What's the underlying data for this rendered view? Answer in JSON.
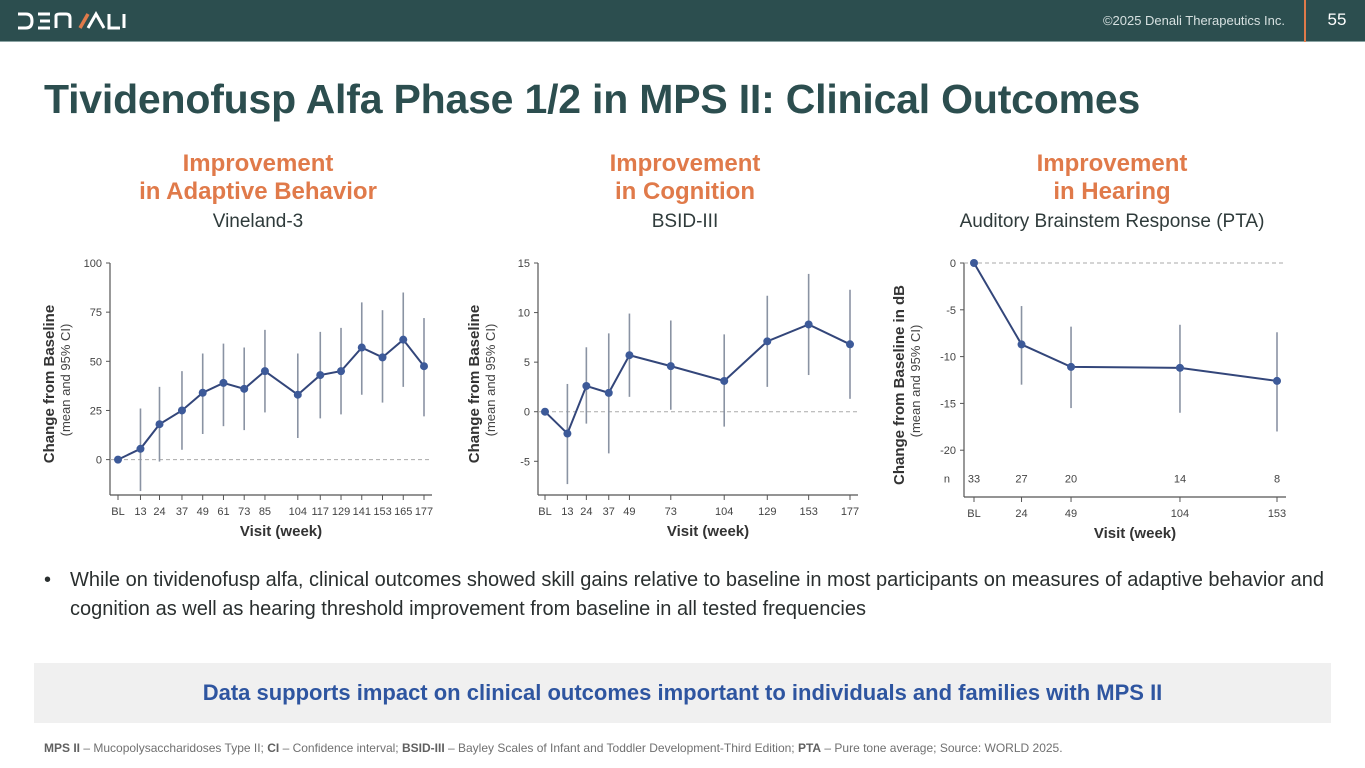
{
  "header": {
    "logo_text": "DENALI",
    "copyright": "©2025 Denali Therapeutics Inc.",
    "page_number": "55",
    "accent_color": "#e07a4a",
    "bar_color": "#2c4e4f"
  },
  "title": "Tividenofusp Alfa Phase 1/2 in MPS II: Clinical Outcomes",
  "columns": [
    {
      "heading_line1": "Improvement",
      "heading_line2": "in Adaptive Behavior",
      "subheading": "Vineland-3"
    },
    {
      "heading_line1": "Improvement",
      "heading_line2": "in Cognition",
      "subheading": "BSID-III"
    },
    {
      "heading_line1": "Improvement",
      "heading_line2": "in Hearing",
      "subheading": "Auditory Brainstem Response (PTA)"
    }
  ],
  "chart_data": [
    {
      "type": "line",
      "title": "Vineland-3",
      "xlabel": "Visit (week)",
      "ylabel": "Change from Baseline",
      "ylabel_sub": "(mean and 95% CI)",
      "x": [
        "BL",
        "13",
        "24",
        "37",
        "49",
        "61",
        "73",
        "85",
        "104",
        "117",
        "129",
        "141",
        "153",
        "165",
        "177"
      ],
      "x_weeks": [
        0,
        13,
        24,
        37,
        49,
        61,
        73,
        85,
        104,
        117,
        129,
        141,
        153,
        165,
        177
      ],
      "series": [
        {
          "name": "Mean change",
          "values": [
            0,
            5.5,
            18,
            25,
            34,
            39,
            36,
            45,
            33,
            43,
            45,
            57,
            52,
            61,
            47.5
          ],
          "ci_low": [
            null,
            -16,
            -1,
            5,
            13,
            17,
            15,
            24,
            11,
            21,
            23,
            33,
            29,
            37,
            22
          ],
          "ci_high": [
            null,
            26,
            37,
            45,
            54,
            59,
            57,
            66,
            54,
            65,
            67,
            80,
            76,
            85,
            72
          ]
        }
      ],
      "yticks": [
        0,
        25,
        50,
        75,
        100
      ],
      "ylim": [
        -18,
        100
      ],
      "reference_line": 0,
      "grid": false
    },
    {
      "type": "line",
      "title": "BSID-III",
      "xlabel": "Visit (week)",
      "ylabel": "Change from Baseline",
      "ylabel_sub": "(mean and 95% CI)",
      "x": [
        "BL",
        "13",
        "24",
        "37",
        "49",
        "73",
        "104",
        "129",
        "153",
        "177"
      ],
      "x_weeks": [
        0,
        13,
        24,
        37,
        49,
        73,
        104,
        129,
        153,
        177
      ],
      "series": [
        {
          "name": "Mean change",
          "values": [
            0,
            -2.2,
            2.6,
            1.9,
            5.7,
            4.6,
            3.1,
            7.1,
            8.8,
            6.8
          ],
          "ci_low": [
            null,
            -7.3,
            -1.2,
            -4.2,
            1.5,
            0.2,
            -1.5,
            2.5,
            3.7,
            1.3
          ],
          "ci_high": [
            null,
            2.8,
            6.5,
            7.9,
            9.9,
            9.2,
            7.8,
            11.7,
            13.9,
            12.3
          ]
        }
      ],
      "yticks": [
        -5,
        0,
        5,
        10,
        15
      ],
      "ylim": [
        -8.4,
        15
      ],
      "reference_line": 0,
      "grid": false
    },
    {
      "type": "line",
      "title": "Auditory Brainstem Response (PTA)",
      "xlabel": "Visit (week)",
      "ylabel": "Change from Baseline in dB",
      "ylabel_sub": "(mean and 95% CI)",
      "x": [
        "BL",
        "24",
        "49",
        "104",
        "153"
      ],
      "x_weeks": [
        0,
        24,
        49,
        104,
        153
      ],
      "series": [
        {
          "name": "Mean change",
          "values": [
            0,
            -8.7,
            -11.1,
            -11.2,
            -12.6
          ],
          "ci_low": [
            null,
            -13,
            -15.5,
            -16,
            -18
          ],
          "ci_high": [
            null,
            -4.6,
            -6.8,
            -6.6,
            -7.4
          ]
        }
      ],
      "n_label": "n",
      "n_values": [
        "33",
        "27",
        "20",
        "14",
        "8"
      ],
      "yticks": [
        -20,
        -15,
        -10,
        -5,
        0
      ],
      "ylim": [
        -25,
        0
      ],
      "reference_line": 0,
      "grid": false
    }
  ],
  "bullet": "While on tividenofusp alfa, clinical outcomes showed skill gains relative to baseline in most participants on measures of adaptive behavior and cognition as well as hearing threshold improvement from baseline in all tested frequencies",
  "callout": "Data supports impact on clinical outcomes important to individuals and families with MPS II",
  "footnote": [
    {
      "abbr": "MPS II",
      "def": " – Mucopolysaccharidoses Type II;  "
    },
    {
      "abbr": "CI",
      "def": " – Confidence interval;  "
    },
    {
      "abbr": "BSID-III",
      "def": " – Bayley Scales of Infant and Toddler Development-Third Edition;  "
    },
    {
      "abbr": "PTA",
      "def": " – Pure tone average;  Source: WORLD 2025."
    }
  ],
  "colors": {
    "series": "#3d5a99",
    "error_bar": "#8a93a3",
    "title": "#2c4e4f",
    "heading": "#e07a4a",
    "callout_text": "#2e55a0"
  }
}
